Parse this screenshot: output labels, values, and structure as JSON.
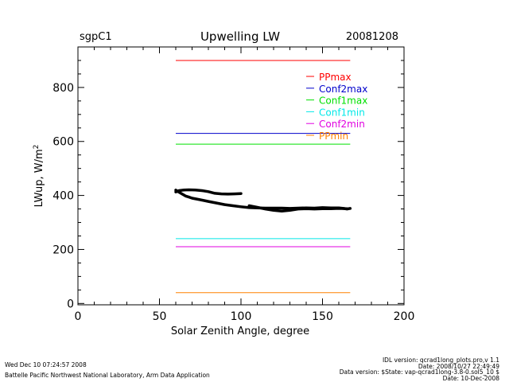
{
  "header": {
    "site": "sgpC1",
    "title": "Upwelling LW",
    "date": "20081208"
  },
  "footer": {
    "run_time": "Wed Dec 10 07:24:57 2008",
    "lab": "Battelle Pacific Northwest National Laboratory, Arm Data Application",
    "idl_version": "IDL version: qcrad1long_plots.pro,v 1.1",
    "idl_date": "Date: 2008/10/27 22:49:49",
    "data_version": "Data version: $State: vap-qcrad1long-3.8-0.sol5_10 $",
    "data_date": "Date: 10-Dec-2008"
  },
  "chart_data": {
    "type": "line",
    "title": "Upwelling LW",
    "xlabel": "Solar Zenith Angle, degree",
    "ylabel": "LWup, W/m",
    "ylabel_superscript": "2",
    "xlim": [
      0,
      200
    ],
    "ylim": [
      -5,
      950
    ],
    "xticks": [
      0,
      50,
      100,
      150,
      200
    ],
    "yticks": [
      0,
      200,
      400,
      600,
      800
    ],
    "grid": false,
    "legend_position": "top-right",
    "reference_lines": [
      {
        "name": "PPmax",
        "value": 900,
        "x_range": [
          60,
          167
        ],
        "color": "#ff0000"
      },
      {
        "name": "Conf2max",
        "value": 630,
        "x_range": [
          60,
          167
        ],
        "color": "#0000cc"
      },
      {
        "name": "Conf1max",
        "value": 590,
        "x_range": [
          60,
          167
        ],
        "color": "#00e000"
      },
      {
        "name": "Conf1min",
        "value": 240,
        "x_range": [
          60,
          167
        ],
        "color": "#00e8e8"
      },
      {
        "name": "Conf2min",
        "value": 210,
        "x_range": [
          60,
          167
        ],
        "color": "#e000e0"
      },
      {
        "name": "PPmin",
        "value": 40,
        "x_range": [
          60,
          167
        ],
        "color": "#ff8000"
      }
    ],
    "series": [
      {
        "color": "#000000",
        "points": [
          [
            60,
            420
          ],
          [
            62,
            412
          ],
          [
            64,
            405
          ],
          [
            66,
            398
          ],
          [
            68,
            394
          ],
          [
            70,
            390
          ],
          [
            75,
            384
          ],
          [
            80,
            378
          ],
          [
            85,
            372
          ],
          [
            90,
            366
          ],
          [
            95,
            362
          ],
          [
            100,
            358
          ],
          [
            105,
            355
          ],
          [
            110,
            354
          ],
          [
            115,
            353
          ],
          [
            120,
            353
          ],
          [
            125,
            353
          ],
          [
            130,
            352
          ],
          [
            135,
            353
          ],
          [
            140,
            354
          ],
          [
            145,
            353
          ],
          [
            150,
            355
          ],
          [
            155,
            354
          ],
          [
            160,
            354
          ],
          [
            163,
            352
          ],
          [
            165,
            350
          ],
          [
            167,
            352
          ]
        ]
      },
      {
        "color": "#000000",
        "points": [
          [
            60,
            413
          ],
          [
            62,
            418
          ],
          [
            65,
            420
          ],
          [
            68,
            421
          ],
          [
            72,
            420
          ],
          [
            76,
            418
          ],
          [
            80,
            414
          ],
          [
            84,
            408
          ],
          [
            88,
            406
          ],
          [
            92,
            405
          ],
          [
            96,
            406
          ],
          [
            100,
            407
          ]
        ]
      },
      {
        "color": "#000000",
        "points": [
          [
            105,
            362
          ],
          [
            110,
            356
          ],
          [
            115,
            350
          ],
          [
            120,
            345
          ],
          [
            125,
            342
          ],
          [
            130,
            345
          ],
          [
            135,
            350
          ],
          [
            140,
            351
          ],
          [
            145,
            350
          ],
          [
            150,
            351
          ],
          [
            155,
            351
          ],
          [
            160,
            352
          ],
          [
            165,
            351
          ]
        ]
      }
    ]
  }
}
